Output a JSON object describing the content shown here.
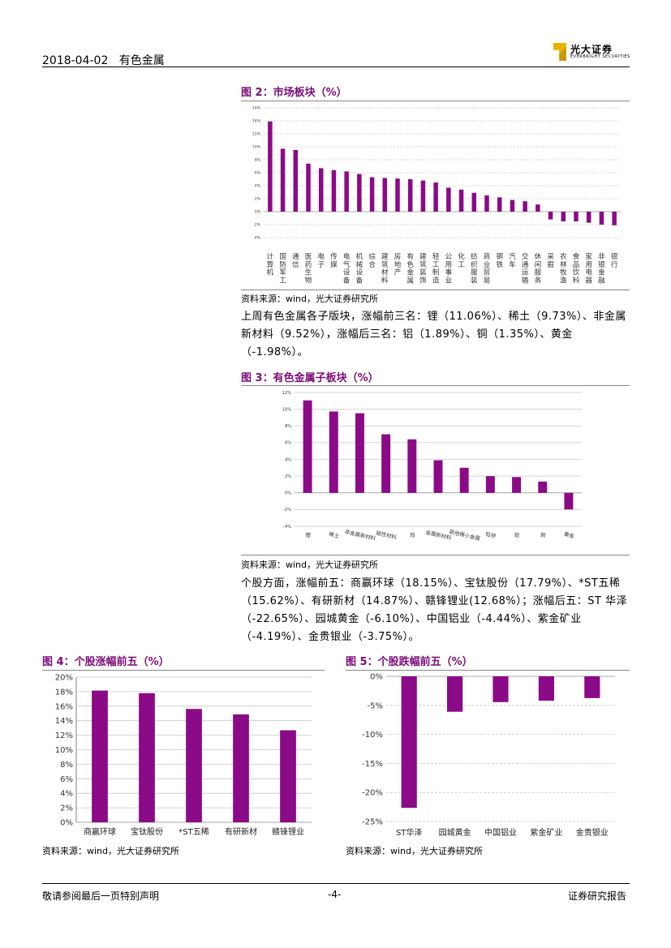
{
  "header": {
    "date": "2018-04-02",
    "section": "有色金属",
    "logo_cn": "光大证券",
    "logo_en": "EVERBRIGHT SECURITIES"
  },
  "fig2": {
    "title": "图 2：市场板块（%）",
    "source": "资料来源：wind，光大证券研究所",
    "chart_data": {
      "type": "bar",
      "categories": [
        "计算机",
        "国防军工",
        "通信",
        "医药生物",
        "电子",
        "传媒",
        "电气设备",
        "机械设备",
        "综合",
        "建筑材料",
        "房地产",
        "有色金属",
        "建筑装饰",
        "轻工制造",
        "公用事业",
        "化工",
        "纺织服装",
        "商业贸易",
        "钢铁",
        "汽车",
        "交通运输",
        "休闲服务",
        "采掘",
        "农林牧渔",
        "食品饮料",
        "家用电器",
        "非银金融",
        "银行"
      ],
      "values": [
        13.9,
        9.7,
        9.5,
        7.4,
        6.7,
        6.4,
        6.2,
        5.8,
        5.3,
        5.2,
        5.1,
        5.0,
        4.8,
        4.5,
        3.7,
        3.4,
        2.9,
        2.5,
        2.2,
        1.8,
        1.6,
        1.1,
        -1.2,
        -1.5,
        -1.5,
        -1.7,
        -2.0,
        -2.1
      ],
      "ylim": [
        -4,
        16
      ],
      "yticks": [
        "-4%",
        "-2%",
        "0%",
        "2%",
        "4%",
        "6%",
        "8%",
        "10%",
        "12%",
        "14%",
        "16%"
      ],
      "color": "#8b0a87"
    }
  },
  "para1": "上周有色金属各子版块，涨幅前三名：锂（11.06%）、稀土（9.73%）、非金属新材料（9.52%），涨幅后三名：铝（1.89%）、铜（1.35%）、黄金（-1.98%）。",
  "fig3": {
    "title": "图 3：有色金属子板块（%）",
    "source": "资料来源：wind，光大证券研究所",
    "chart_data": {
      "type": "bar",
      "categories": [
        "锂",
        "稀土",
        "非金属新材料",
        "磁性材料",
        "钨",
        "金属新材料",
        "其他稀小金属",
        "铅锌",
        "铝",
        "铜",
        "黄金"
      ],
      "values": [
        11.06,
        9.73,
        9.52,
        7.0,
        6.4,
        3.9,
        3.0,
        2.0,
        1.89,
        1.35,
        -1.98
      ],
      "ylim": [
        -4,
        12
      ],
      "yticks": [
        "-4%",
        "-2%",
        "0%",
        "2%",
        "4%",
        "6%",
        "8%",
        "10%",
        "12%"
      ],
      "color": "#8b0a87"
    }
  },
  "para2": "个股方面，涨幅前五：商赢环球（18.15%）、宝钛股份（17.79%）、*ST五稀（15.62%）、有研新材（14.87%）、赣锋锂业(12.68%）；涨幅后五：ST 华泽（-22.65%）、园城黄金（-6.10%）、中国铝业（-4.44%）、紫金矿业（-4.19%）、金贵银业（-3.75%）。",
  "fig4": {
    "title": "图 4：个股涨幅前五（%）",
    "source": "资料来源：wind，光大证券研究所",
    "chart_data": {
      "type": "bar",
      "categories": [
        "商赢环球",
        "宝钛股份",
        "*ST五稀",
        "有研新材",
        "赣锋锂业"
      ],
      "values": [
        18.15,
        17.79,
        15.62,
        14.87,
        12.68
      ],
      "ylim": [
        0,
        20
      ],
      "yticks": [
        "0%",
        "2%",
        "4%",
        "6%",
        "8%",
        "10%",
        "12%",
        "14%",
        "16%",
        "18%",
        "20%"
      ],
      "color": "#8b0a87"
    }
  },
  "fig5": {
    "title": "图 5：个股跌幅前五（%）",
    "source": "资料来源：wind，光大证券研究所",
    "chart_data": {
      "type": "bar",
      "categories": [
        "ST华泽",
        "园城黄金",
        "中国铝业",
        "紫金矿业",
        "金贵银业"
      ],
      "values": [
        -22.65,
        -6.1,
        -4.44,
        -4.19,
        -3.75
      ],
      "ylim": [
        -25,
        0
      ],
      "yticks": [
        "0%",
        "-5%",
        "-10%",
        "-15%",
        "-20%",
        "-25%"
      ],
      "color": "#8b0a87"
    }
  },
  "footer": {
    "left": "敬请参阅最后一页特别声明",
    "center": "-4-",
    "right": "证券研究报告"
  }
}
